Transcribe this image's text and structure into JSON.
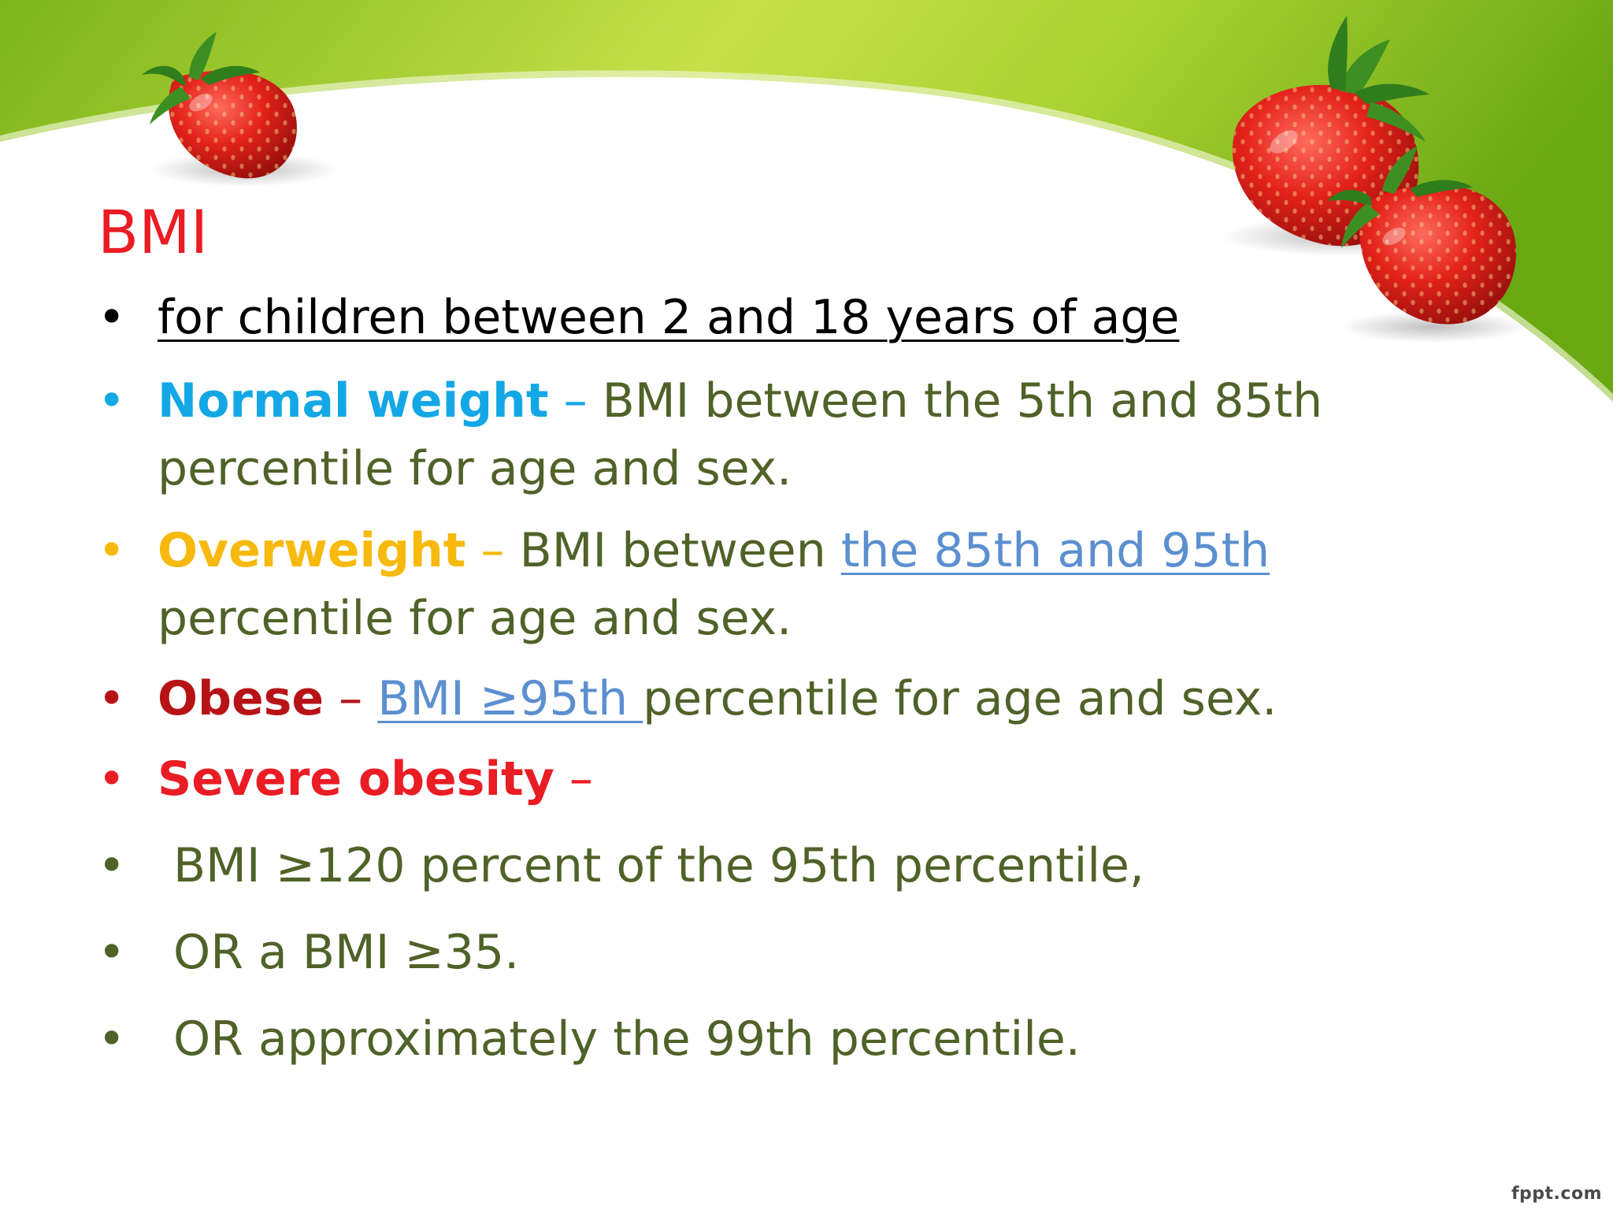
{
  "slide": {
    "title": "BMI",
    "title_color": "#ea1c24",
    "text_color": "#4f6228",
    "footer": "fppt.com",
    "bullet_glyph": "•",
    "items": [
      {
        "text": "for children between 2 and 18 years of age",
        "color": "#000000"
      },
      {
        "label": "Normal weight",
        "label_color": "#14a7e6",
        "dash": " –",
        "text": " BMI between the 5th and 85th",
        "text_cont": "percentile for age and sex."
      },
      {
        "label": "Overweight",
        "label_color": "#f7b90d",
        "dash": " –",
        "text": " BMI between ",
        "link": "the 85th and 95th",
        "text_cont": "percentile for age and sex."
      },
      {
        "label": "Obese",
        "label_color": "#b71316",
        "dash": " –",
        "space": " ",
        "link": "BMI ≥95th ",
        "text": "percentile for age and sex."
      },
      {
        "label": "Severe obesity",
        "label_color": "#ea1c24",
        "dash": " –"
      },
      {
        "text": "BMI ≥120 percent of the 95th percentile,"
      },
      {
        "text": "OR a BMI ≥35."
      },
      {
        "text": "OR approximately the 99th percentile."
      }
    ]
  },
  "decorations": {
    "icons": [
      "strawberry-icon",
      "strawberry-icon",
      "strawberry-icon"
    ],
    "band_color": "#8cc21e"
  }
}
